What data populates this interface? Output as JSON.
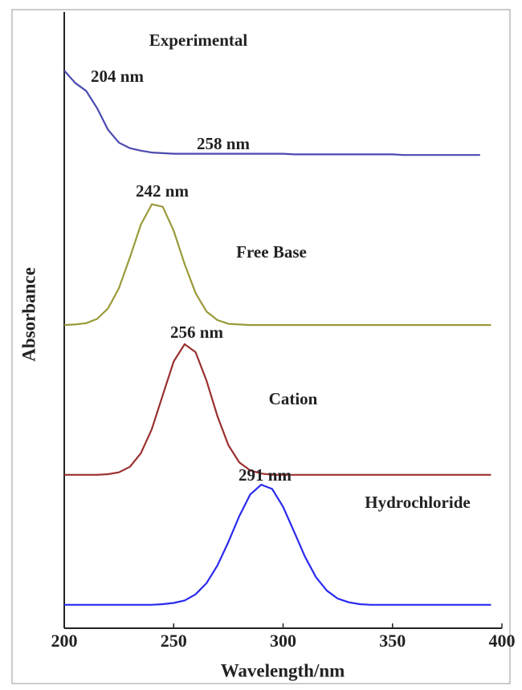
{
  "chart_data": {
    "type": "line",
    "x_label": "Wavelength/nm",
    "y_label": "Absorbance",
    "xlim": [
      200,
      400
    ],
    "xticks": [
      200,
      250,
      300,
      350,
      400
    ],
    "ylim": [
      0,
      10
    ],
    "x": [
      200,
      205,
      210,
      215,
      220,
      225,
      230,
      235,
      240,
      245,
      250,
      255,
      260,
      265,
      270,
      275,
      280,
      285,
      290,
      295,
      300,
      305,
      310,
      315,
      320,
      325,
      330,
      335,
      340,
      345,
      350,
      355,
      360,
      365,
      370,
      375,
      380,
      385,
      390,
      395
    ],
    "series": [
      {
        "name": "Experimental",
        "color": "#4a4ab0",
        "values": [
          9.05,
          8.85,
          8.72,
          8.44,
          8.09,
          7.88,
          7.79,
          7.75,
          7.72,
          7.71,
          7.7,
          7.7,
          7.7,
          7.7,
          7.7,
          7.7,
          7.7,
          7.7,
          7.7,
          7.7,
          7.7,
          7.69,
          7.69,
          7.69,
          7.69,
          7.69,
          7.69,
          7.69,
          7.69,
          7.69,
          7.69,
          7.68,
          7.68,
          7.68,
          7.68,
          7.68,
          7.68,
          7.68,
          7.68,
          null
        ]
      },
      {
        "name": "Free Base",
        "color": "#9a9a3a",
        "values": [
          4.92,
          4.93,
          4.95,
          5.02,
          5.19,
          5.52,
          6.02,
          6.55,
          6.88,
          6.84,
          6.45,
          5.91,
          5.44,
          5.14,
          5.0,
          4.94,
          4.93,
          4.92,
          4.92,
          4.92,
          4.92,
          4.92,
          4.92,
          4.92,
          4.92,
          4.92,
          4.92,
          4.92,
          4.92,
          4.92,
          4.92,
          4.92,
          4.92,
          4.92,
          4.92,
          4.92,
          4.92,
          4.92,
          4.92,
          4.92
        ]
      },
      {
        "name": "Cation",
        "color": "#9b3030",
        "values": [
          2.49,
          2.49,
          2.49,
          2.49,
          2.5,
          2.53,
          2.62,
          2.84,
          3.23,
          3.78,
          4.33,
          4.61,
          4.48,
          4.02,
          3.44,
          2.97,
          2.69,
          2.56,
          2.51,
          2.49,
          2.49,
          2.49,
          2.49,
          2.49,
          2.49,
          2.49,
          2.49,
          2.49,
          2.49,
          2.49,
          2.49,
          2.49,
          2.49,
          2.49,
          2.49,
          2.49,
          2.49,
          2.49,
          2.49,
          2.49
        ]
      },
      {
        "name": "Hydrochloride",
        "color": "#2a2af0",
        "values": [
          0.38,
          0.38,
          0.38,
          0.38,
          0.38,
          0.38,
          0.38,
          0.38,
          0.38,
          0.39,
          0.41,
          0.45,
          0.55,
          0.73,
          1.02,
          1.4,
          1.82,
          2.17,
          2.33,
          2.26,
          1.97,
          1.57,
          1.16,
          0.83,
          0.61,
          0.48,
          0.42,
          0.39,
          0.38,
          0.38,
          0.38,
          0.38,
          0.38,
          0.38,
          0.38,
          0.38,
          0.38,
          0.38,
          0.38,
          0.38
        ]
      }
    ],
    "annotations": [
      "Experimental",
      "204 nm",
      "258 nm",
      "242 nm",
      "Free Base",
      "256 nm",
      "Cation",
      "291 nm",
      "Hydrochloride"
    ]
  }
}
